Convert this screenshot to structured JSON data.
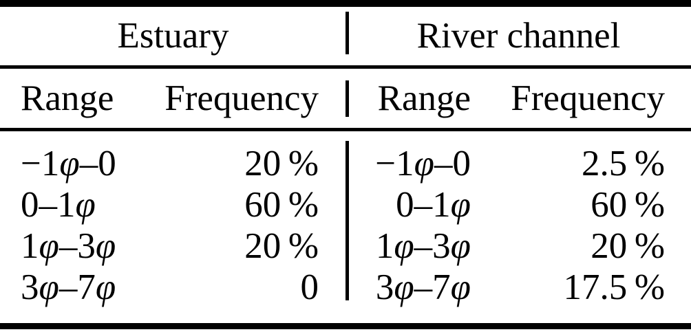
{
  "table": {
    "groups": [
      {
        "title": "Estuary"
      },
      {
        "title": "River channel"
      }
    ],
    "column_headers": {
      "range": "Range",
      "frequency": "Frequency"
    },
    "rows": [
      {
        "estuary_range": "−1φ–0",
        "estuary_frequency": "20 %",
        "river_range": "−1φ–0",
        "river_frequency": "2.5 %"
      },
      {
        "estuary_range": "0–1φ",
        "estuary_frequency": "60 %",
        "river_range": "0–1φ",
        "river_frequency": "60 %"
      },
      {
        "estuary_range": "1φ–3φ",
        "estuary_frequency": "20 %",
        "river_range": "1φ–3φ",
        "river_frequency": "20 %"
      },
      {
        "estuary_range": "3φ–7φ",
        "estuary_frequency": "0",
        "river_range": "3φ–7φ",
        "river_frequency": "17.5 %"
      }
    ],
    "colors": {
      "text": "#000000",
      "background": "#ffffff",
      "rule": "#000000"
    }
  }
}
